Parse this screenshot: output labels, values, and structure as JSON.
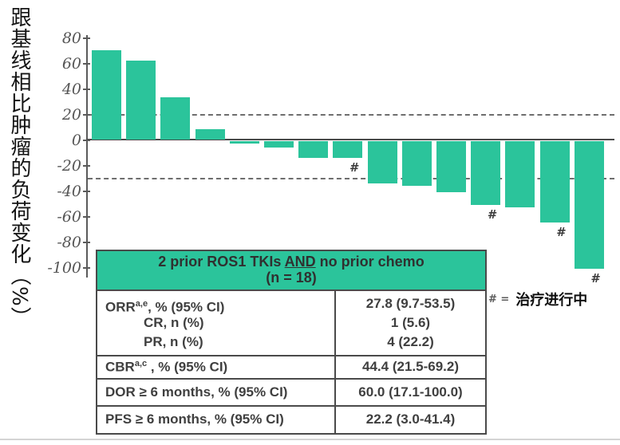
{
  "figure": {
    "y_axis_label": "跟基线相比肿瘤的负荷变化（%）",
    "legend": {
      "marker": "# =",
      "text": "治疗进行中"
    }
  },
  "chart_data": {
    "type": "bar",
    "title": "",
    "xlabel": "",
    "ylabel": "跟基线相比肿瘤的负荷变化（%）",
    "yticks": [
      80,
      60,
      40,
      20,
      0,
      -20,
      -40,
      -60,
      -80,
      -100
    ],
    "ylim": [
      -105,
      85
    ],
    "grid": false,
    "reference_lines": {
      "upper": 20,
      "lower": -30,
      "style": "dashed"
    },
    "values": [
      70,
      62,
      33,
      8,
      -2,
      -5,
      -13,
      -13,
      -33,
      -35,
      -40,
      -50,
      -52,
      -64,
      -100
    ],
    "ongoing_treatment_indices": [
      7,
      11,
      13,
      14
    ],
    "ongoing_marker": "#",
    "bar_color": "#2BC49B",
    "n_label": "n = 18"
  },
  "table": {
    "header": {
      "prefix": "2 prior ROS1 TKIs ",
      "and": "AND",
      "suffix": " no prior chemo",
      "n_line": "(n = 18)"
    },
    "orr_block": {
      "rows": [
        {
          "label_main": "ORR",
          "label_sup": "a,e",
          "label_rest": ", % (95% CI)",
          "value": "27.8 (9.7-53.5)"
        },
        {
          "label_main": "CR, n (%)",
          "label_sup": "",
          "label_rest": "",
          "value": "1 (5.6)"
        },
        {
          "label_main": "PR, n (%)",
          "label_sup": "",
          "label_rest": "",
          "value": "4 (22.2)"
        }
      ]
    },
    "rows": [
      {
        "label_main": "CBR",
        "label_sup": "a,c",
        "label_rest": " , % (95% CI)",
        "value": "44.4 (21.5-69.2)"
      },
      {
        "label_main": "DOR ≥ 6 months, % (95% CI)",
        "label_sup": "",
        "label_rest": "",
        "value": "60.0 (17.1-100.0)"
      },
      {
        "label_main": "PFS ≥ 6 months, % (95% CI)",
        "label_sup": "",
        "label_rest": "",
        "value": "22.2 (3.0-41.4)"
      }
    ]
  },
  "colors": {
    "bar": "#2BC49B",
    "axis": "#5a5a5a",
    "table_border": "#4a4a4a",
    "table_text": "#3f3f3f",
    "bottom_rule": "#d4d4d4"
  }
}
